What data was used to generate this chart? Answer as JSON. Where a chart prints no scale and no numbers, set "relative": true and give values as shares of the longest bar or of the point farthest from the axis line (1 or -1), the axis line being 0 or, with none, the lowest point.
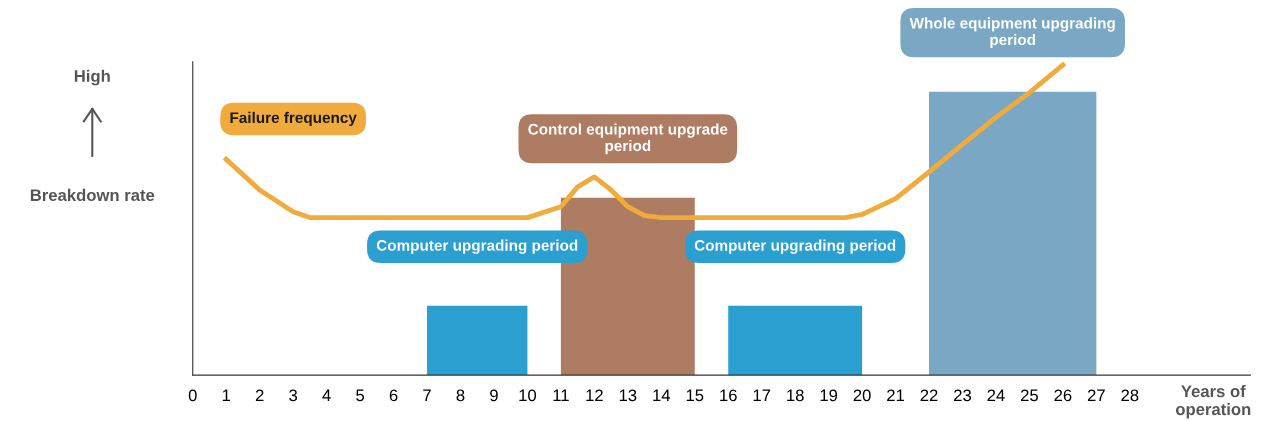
{
  "chart_data": {
    "type": "line",
    "relative": true,
    "xlabel": "Years of operation",
    "ylabel": "Breakdown rate",
    "annotations": [
      "High"
    ],
    "xlim": [
      0,
      31.6
    ],
    "xticks": [
      0,
      1,
      2,
      3,
      4,
      5,
      6,
      7,
      8,
      9,
      10,
      11,
      12,
      13,
      14,
      15,
      16,
      17,
      18,
      19,
      20,
      21,
      22,
      23,
      24,
      25,
      26,
      27,
      28
    ],
    "tick_labels": "x",
    "grid": false,
    "legend": false,
    "marker": "none",
    "line_style": "solid",
    "series": [
      {
        "name": "Computer upgrading period",
        "type": "area",
        "color": "#2a9fd0",
        "x": [
          7,
          10
        ],
        "values": [
          0.224,
          0.224
        ]
      },
      {
        "name": "Control equipment upgrade period",
        "type": "area",
        "color": "#ad7c62",
        "x": [
          11,
          15
        ],
        "values": [
          0.572,
          0.572
        ]
      },
      {
        "name": "Computer upgrading period",
        "type": "area",
        "color": "#2a9fd0",
        "x": [
          16,
          20
        ],
        "values": [
          0.224,
          0.224
        ]
      },
      {
        "name": "Whole equipment upgrading period",
        "type": "area",
        "color": "#7aa7c4",
        "x": [
          22,
          27
        ],
        "values": [
          0.914,
          0.914
        ]
      },
      {
        "name": "Failure frequency",
        "type": "line",
        "color": "#f0ab3c",
        "x": [
          1,
          2,
          3,
          3.5,
          10,
          11,
          11.5,
          12,
          12.5,
          13,
          13.5,
          14,
          19.5,
          20,
          21,
          22,
          23,
          24,
          25,
          26
        ],
        "values": [
          0.696,
          0.597,
          0.527,
          0.508,
          0.508,
          0.543,
          0.607,
          0.639,
          0.597,
          0.543,
          0.514,
          0.508,
          0.508,
          0.518,
          0.569,
          0.655,
          0.744,
          0.831,
          0.911,
          1
        ]
      }
    ]
  }
}
